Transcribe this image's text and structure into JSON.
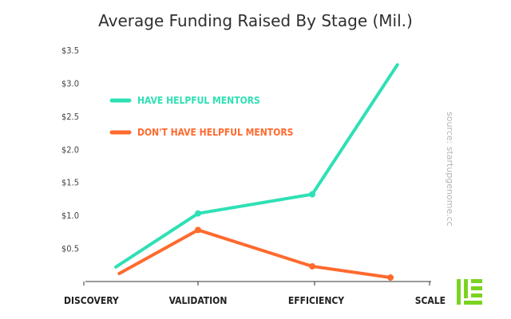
{
  "chart_data": {
    "type": "line",
    "title": "Average Funding Raised By Stage (Mil.)",
    "xlabel": "",
    "ylabel": "",
    "categories": [
      "DISCOVERY",
      "VALIDATION",
      "EFFICIENCY",
      "SCALE"
    ],
    "y_ticks": [
      "$0.5",
      "$1.0",
      "$1.5",
      "$2.0",
      "$2.5",
      "$3.0",
      "$3.5"
    ],
    "y_tick_values": [
      0.5,
      1.0,
      1.5,
      2.0,
      2.5,
      3.0,
      3.5
    ],
    "ylim": [
      0,
      3.5
    ],
    "series": [
      {
        "name": "HAVE HELPFUL MENTORS",
        "color": "#2fe0b5",
        "x_positions": [
          0.28,
          1.0,
          1.98,
          2.72
        ],
        "values": [
          0.22,
          1.03,
          1.32,
          3.28
        ],
        "end_markers": false
      },
      {
        "name": "DON'T HAVE HELPFUL MENTORS",
        "color": "#ff6a2e",
        "x_positions": [
          0.31,
          1.0,
          1.98,
          2.66
        ],
        "values": [
          0.12,
          0.78,
          0.23,
          0.06
        ],
        "end_markers": true
      }
    ],
    "legend": "upper-left",
    "grid": false,
    "annotation": "source: startupgenome.cc"
  },
  "logo_icon": "brand-logo-icon",
  "logo_color": "#7bd321"
}
